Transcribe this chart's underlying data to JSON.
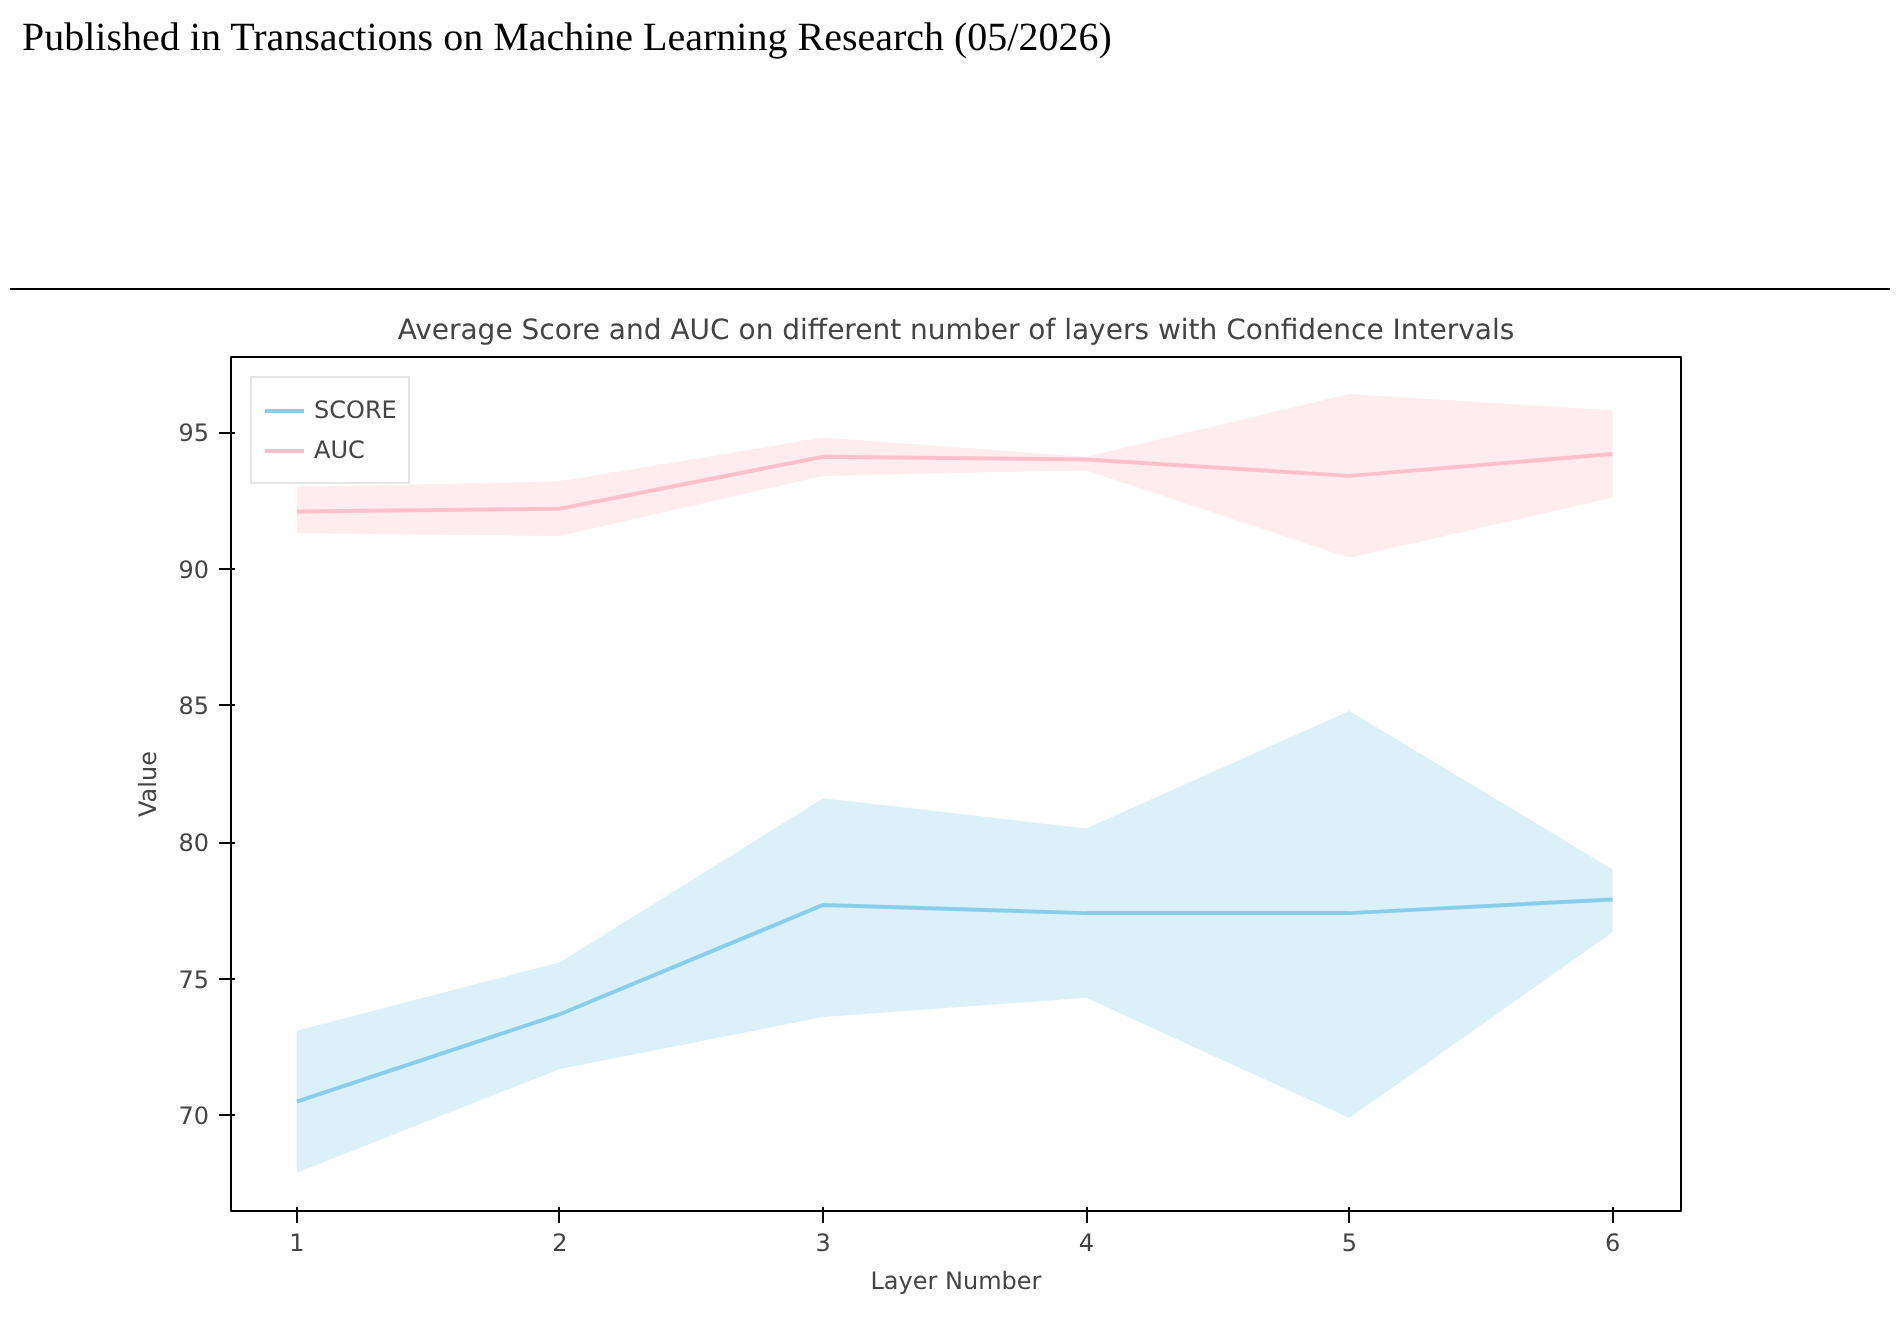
{
  "chart_data": {
    "type": "line",
    "title": "Average Score and AUC on different number of layers with Confidence Intervals",
    "xlabel": "Layer Number",
    "ylabel": "Value",
    "annotations": [
      "Published in Transactions on Machine Learning Research (05/2026)"
    ],
    "x": [
      1,
      2,
      3,
      4,
      5,
      6
    ],
    "xlim": [
      0.75,
      6.26
    ],
    "xticks": [
      1,
      2,
      3,
      4,
      5,
      6
    ],
    "ylim": [
      66.5,
      97.75
    ],
    "yticks": [
      70,
      75,
      80,
      85,
      90,
      95
    ],
    "grid": false,
    "legend": "top left",
    "series": [
      {
        "name": "SCORE",
        "color": "#87ceeb",
        "values": [
          70.5,
          73.7,
          77.7,
          77.4,
          77.4,
          77.9
        ],
        "lower": [
          67.9,
          71.7,
          73.6,
          74.3,
          69.9,
          76.7
        ],
        "upper": [
          73.1,
          75.6,
          81.6,
          80.5,
          84.8,
          79.0
        ]
      },
      {
        "name": "AUC",
        "color": "#ffc0cb",
        "values": [
          92.1,
          92.2,
          94.1,
          94.0,
          93.4,
          94.2
        ],
        "lower": [
          91.3,
          91.2,
          93.4,
          93.6,
          90.4,
          92.6
        ],
        "upper": [
          93.0,
          93.2,
          94.8,
          94.1,
          96.4,
          95.8
        ]
      }
    ]
  }
}
